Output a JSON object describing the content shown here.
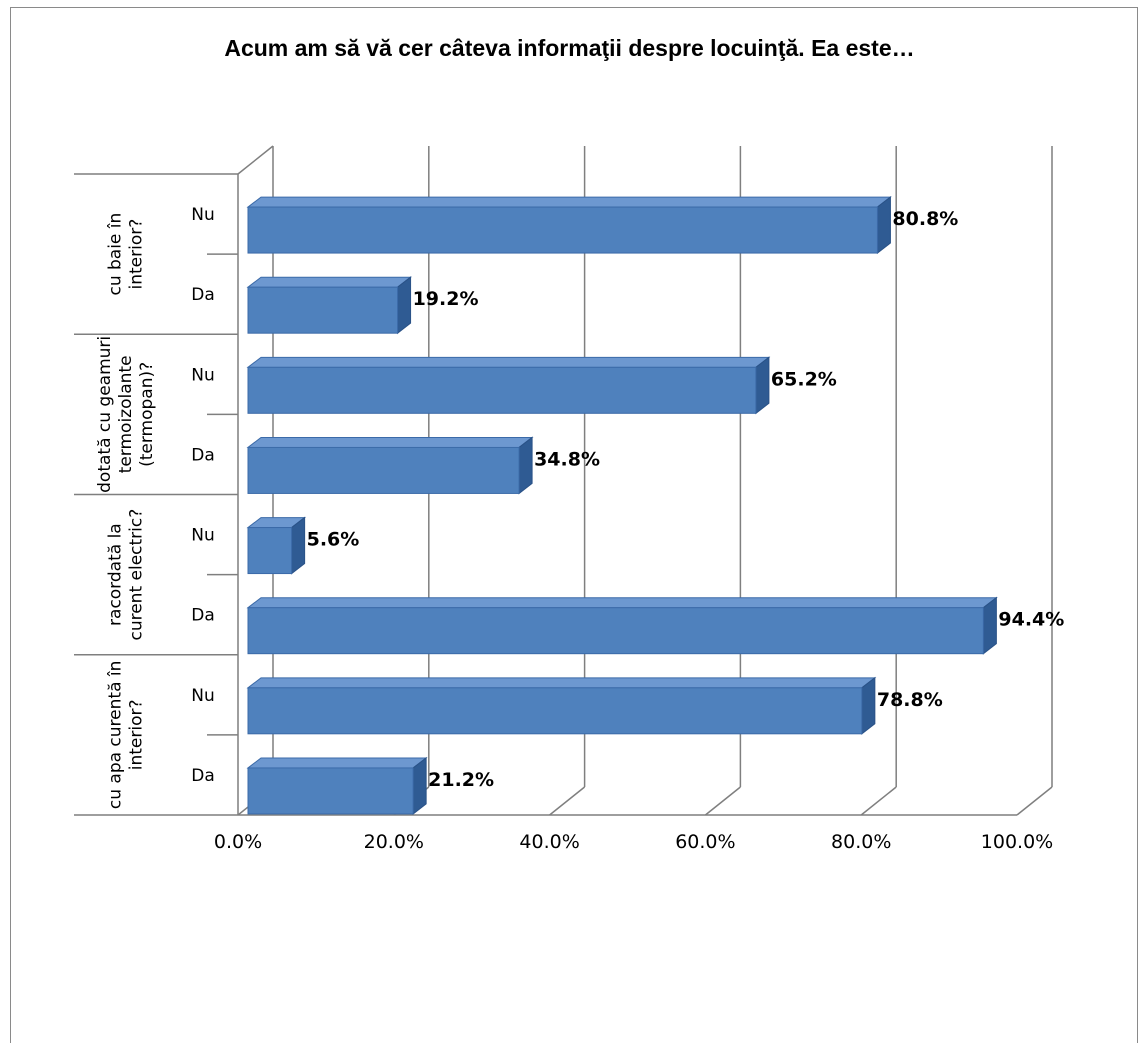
{
  "chart_data": {
    "type": "bar",
    "orientation": "horizontal",
    "title": "Acum am să vă cer câteva informaţii despre locuinţă. Ea este…",
    "xlim": [
      0,
      100
    ],
    "x_ticks": [
      "0.0%",
      "20.0%",
      "40.0%",
      "60.0%",
      "80.0%",
      "100.0%"
    ],
    "grid": true,
    "legend": "none",
    "bar_color": "#4f81bd",
    "groups": [
      {
        "label": "cu baie în interior?",
        "label_lines": [
          "cu baie în",
          "interior?"
        ],
        "bars": [
          {
            "category": "Nu",
            "value": 80.8,
            "label": "80.8%"
          },
          {
            "category": "Da",
            "value": 19.2,
            "label": "19.2%"
          }
        ]
      },
      {
        "label": "dotată cu geamuri termoizolante (termopan)?",
        "label_lines": [
          "dotată cu geamuri",
          "termoizolante",
          "(termopan)?"
        ],
        "bars": [
          {
            "category": "Nu",
            "value": 65.2,
            "label": "65.2%"
          },
          {
            "category": "Da",
            "value": 34.8,
            "label": "34.8%"
          }
        ]
      },
      {
        "label": "racordată la curent electric?",
        "label_lines": [
          "racordată la",
          "curent electric?"
        ],
        "bars": [
          {
            "category": "Nu",
            "value": 5.6,
            "label": "5.6%"
          },
          {
            "category": "Da",
            "value": 94.4,
            "label": "94.4%"
          }
        ]
      },
      {
        "label": "cu apa curentă în interior?",
        "label_lines": [
          "cu apa curentă în",
          "interior?"
        ],
        "bars": [
          {
            "category": "Nu",
            "value": 78.8,
            "label": "78.8%"
          },
          {
            "category": "Da",
            "value": 21.2,
            "label": "21.2%"
          }
        ]
      }
    ]
  }
}
